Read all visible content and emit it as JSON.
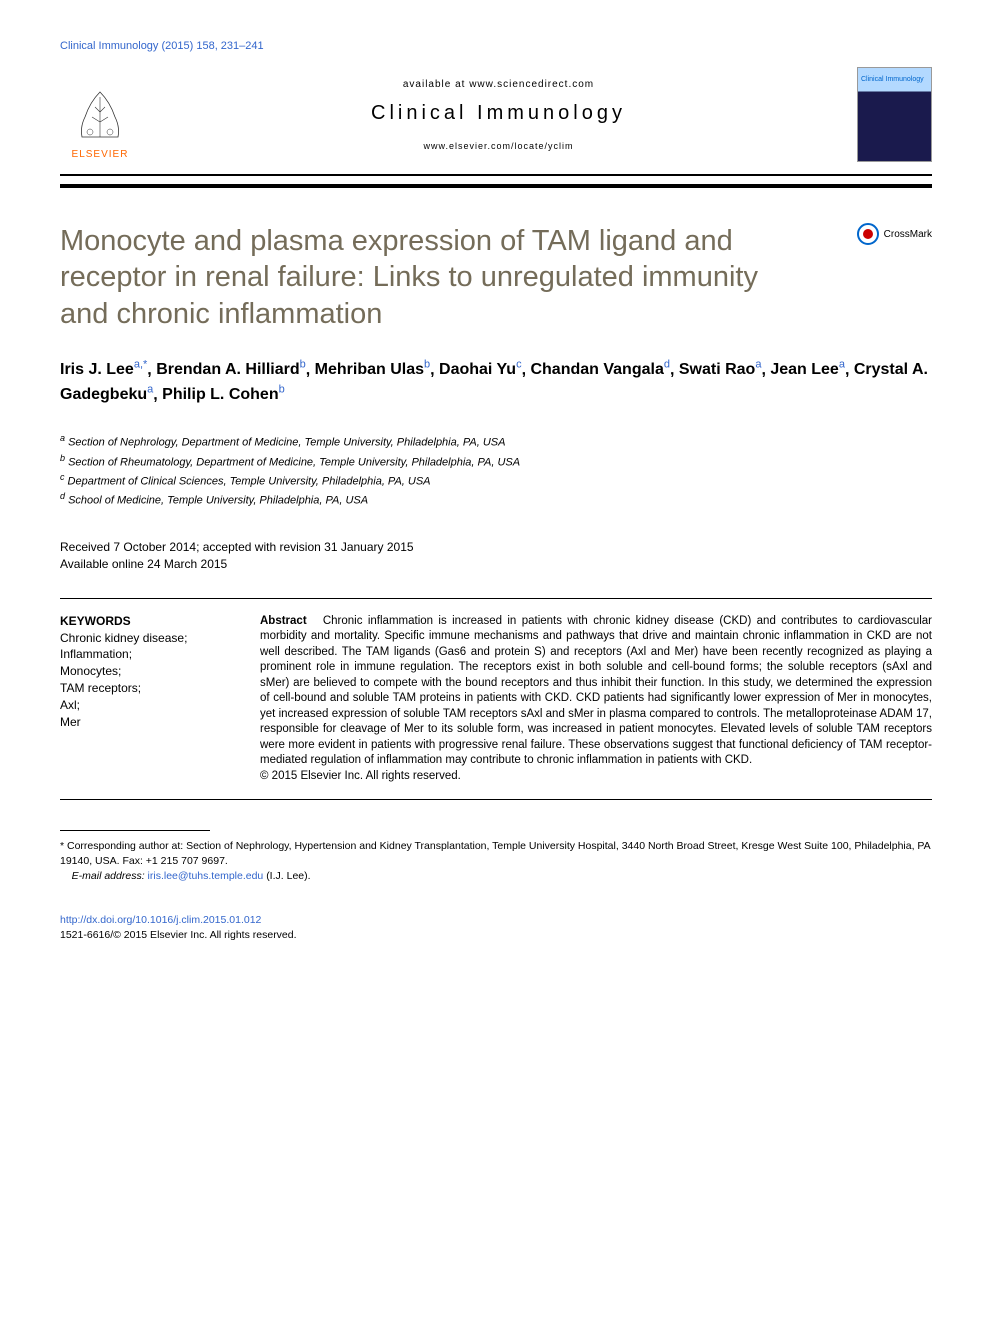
{
  "header_ref": "Clinical Immunology (2015) 158, 231–241",
  "available_text": "available at www.sciencedirect.com",
  "journal_name": "Clinical Immunology",
  "journal_url": "www.elsevier.com/locate/yclim",
  "elsevier_label": "ELSEVIER",
  "cover_title": "Clinical Immunology",
  "crossmark_text": "CrossMark",
  "article_title": "Monocyte and plasma expression of TAM ligand and receptor in renal failure: Links to unregulated immunity and chronic inflammation",
  "authors": [
    {
      "name": "Iris J. Lee",
      "sup": "a,*"
    },
    {
      "name": "Brendan A. Hilliard",
      "sup": "b"
    },
    {
      "name": "Mehriban Ulas",
      "sup": "b"
    },
    {
      "name": "Daohai Yu",
      "sup": "c"
    },
    {
      "name": "Chandan Vangala",
      "sup": "d"
    },
    {
      "name": "Swati Rao",
      "sup": "a"
    },
    {
      "name": "Jean Lee",
      "sup": "a"
    },
    {
      "name": "Crystal A. Gadegbeku",
      "sup": "a"
    },
    {
      "name": "Philip L. Cohen",
      "sup": "b"
    }
  ],
  "affiliations": [
    {
      "sup": "a",
      "text": "Section of Nephrology, Department of Medicine, Temple University, Philadelphia, PA, USA"
    },
    {
      "sup": "b",
      "text": "Section of Rheumatology, Department of Medicine, Temple University, Philadelphia, PA, USA"
    },
    {
      "sup": "c",
      "text": "Department of Clinical Sciences, Temple University, Philadelphia, PA, USA"
    },
    {
      "sup": "d",
      "text": "School of Medicine, Temple University, Philadelphia, PA, USA"
    }
  ],
  "date_received": "Received 7 October 2014; accepted with revision 31 January 2015",
  "date_online": "Available online 24 March 2015",
  "keywords_title": "KEYWORDS",
  "keywords": "Chronic kidney disease;\nInflammation;\nMonocytes;\nTAM receptors;\nAxl;\nMer",
  "abstract_label": "Abstract",
  "abstract_text": "Chronic inflammation is increased in patients with chronic kidney disease (CKD) and contributes to cardiovascular morbidity and mortality. Specific immune mechanisms and pathways that drive and maintain chronic inflammation in CKD are not well described. The TAM ligands (Gas6 and protein S) and receptors (Axl and Mer) have been recently recognized as playing a prominent role in immune regulation. The receptors exist in both soluble and cell-bound forms; the soluble receptors (sAxl and sMer) are believed to compete with the bound receptors and thus inhibit their function. In this study, we determined the expression of cell-bound and soluble TAM proteins in patients with CKD. CKD patients had significantly lower expression of Mer in monocytes, yet increased expression of soluble TAM receptors sAxl and sMer in plasma compared to controls. The metalloproteinase ADAM 17, responsible for cleavage of Mer to its soluble form, was increased in patient monocytes. Elevated levels of soluble TAM receptors were more evident in patients with progressive renal failure. These observations suggest that functional deficiency of TAM receptor-mediated regulation of inflammation may contribute to chronic inflammation in patients with CKD.",
  "copyright": "© 2015 Elsevier Inc. All rights reserved.",
  "corresponding_label": "* Corresponding author at:",
  "corresponding_text": "Section of Nephrology, Hypertension and Kidney Transplantation, Temple University Hospital, 3440 North Broad Street, Kresge West Suite 100, Philadelphia, PA 19140, USA. Fax: +1 215 707 9697.",
  "email_label": "E-mail address:",
  "email_value": "iris.lee@tuhs.temple.edu",
  "email_author": "(I.J. Lee).",
  "doi_url": "http://dx.doi.org/10.1016/j.clim.2015.01.012",
  "issn_copyright": "1521-6616/© 2015 Elsevier Inc. All rights reserved.",
  "colors": {
    "title_color": "#746c59",
    "link_color": "#3366cc",
    "elsevier_orange": "#ff6600"
  }
}
